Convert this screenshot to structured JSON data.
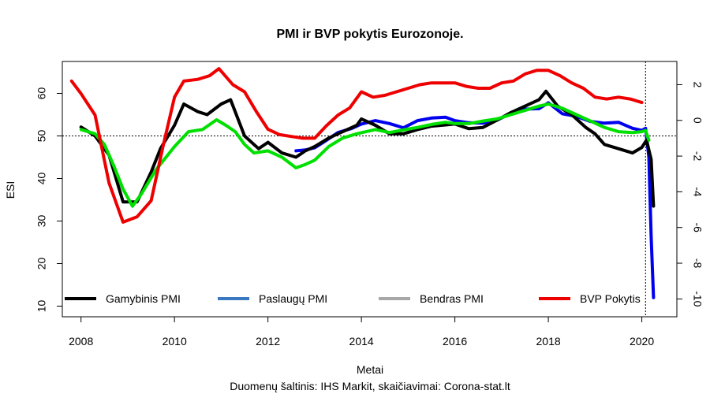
{
  "chart_data": {
    "type": "line",
    "title": "PMI ir BVP pokytis Eurozonoje.",
    "xlabel": "Metai",
    "caption": "Duomenų šaltinis: IHS Markit, skaičiavimai: Corona-stat.lt",
    "ylabel_left": "ESI",
    "ylabel_right": "",
    "xlim": [
      2007.6,
      2020.75
    ],
    "ylim_left": [
      7.5,
      67.5
    ],
    "ylim_right": [
      -11.0,
      3.3
    ],
    "x_ticks": [
      2008,
      2010,
      2012,
      2014,
      2016,
      2018,
      2020
    ],
    "y_ticks_left": [
      10,
      20,
      30,
      40,
      50,
      60
    ],
    "y_ticks_right": [
      -10,
      -8,
      -6,
      -4,
      -2,
      0,
      2
    ],
    "reference_lines": {
      "horizontal_left_y": 50,
      "vertical_x": 2020.08
    },
    "legend_position": "bottom",
    "legend": [
      "Gamybinis PMI",
      "Paslaugų PMI",
      "Bendras PMI",
      "BVP Pokytis"
    ],
    "series": [
      {
        "name": "Paslaugų PMI",
        "axis": "left",
        "color": "#0000ee",
        "legend_color": "#3a78c0",
        "x": [
          2012.6,
          2012.8,
          2013.0,
          2013.2,
          2013.5,
          2013.8,
          2014.0,
          2014.3,
          2014.6,
          2014.9,
          2015.2,
          2015.5,
          2015.8,
          2016.0,
          2016.3,
          2016.6,
          2016.9,
          2017.2,
          2017.5,
          2017.8,
          2018.0,
          2018.3,
          2018.6,
          2018.9,
          2019.2,
          2019.5,
          2019.8,
          2020.0,
          2020.08,
          2020.15,
          2020.2,
          2020.25
        ],
        "values": [
          46.5,
          46.7,
          47.2,
          48.6,
          50.8,
          51.8,
          52.8,
          53.6,
          52.9,
          51.9,
          53.6,
          54.2,
          54.4,
          53.6,
          53.1,
          53.0,
          53.7,
          55.3,
          56.3,
          56.4,
          57.8,
          55.2,
          54.6,
          53.4,
          53.0,
          53.2,
          51.8,
          51.3,
          51.8,
          45.0,
          26.4,
          12.0
        ]
      },
      {
        "name": "Gamybinis PMI",
        "axis": "left",
        "color": "#000000",
        "legend_color": "#000000",
        "x": [
          2008.0,
          2008.3,
          2008.6,
          2008.9,
          2009.2,
          2009.5,
          2009.7,
          2010.0,
          2010.2,
          2010.5,
          2010.7,
          2011.0,
          2011.2,
          2011.5,
          2011.8,
          2012.0,
          2012.3,
          2012.6,
          2012.8,
          2013.0,
          2013.3,
          2013.6,
          2013.9,
          2014.0,
          2014.3,
          2014.6,
          2014.9,
          2015.2,
          2015.5,
          2015.8,
          2016.0,
          2016.3,
          2016.6,
          2016.9,
          2017.2,
          2017.5,
          2017.8,
          2017.95,
          2018.2,
          2018.5,
          2018.8,
          2019.0,
          2019.2,
          2019.5,
          2019.8,
          2020.0,
          2020.1,
          2020.2,
          2020.25
        ],
        "values": [
          52.1,
          50.0,
          45.5,
          34.5,
          34.5,
          41.5,
          47.0,
          52.5,
          57.5,
          55.7,
          55.0,
          57.5,
          58.5,
          50.0,
          47.0,
          48.5,
          46.0,
          45.0,
          46.5,
          47.5,
          49.5,
          51.0,
          52.5,
          54.0,
          52.5,
          50.5,
          50.5,
          51.5,
          52.3,
          52.6,
          52.8,
          51.7,
          52.0,
          53.7,
          55.5,
          57.0,
          58.5,
          60.5,
          57.0,
          55.0,
          52.0,
          50.5,
          48.0,
          47.0,
          46.0,
          47.3,
          49.0,
          44.5,
          33.5
        ]
      },
      {
        "name": "Bendras PMI",
        "axis": "left",
        "color": "#00e000",
        "legend_color": "#a8a8a8",
        "x": [
          2008.0,
          2008.3,
          2008.5,
          2008.7,
          2008.9,
          2009.1,
          2009.3,
          2009.6,
          2010.0,
          2010.3,
          2010.6,
          2010.9,
          2011.1,
          2011.3,
          2011.5,
          2011.7,
          2012.0,
          2012.3,
          2012.6,
          2012.8,
          2013.0,
          2013.3,
          2013.6,
          2013.9,
          2014.1,
          2014.3,
          2014.6,
          2014.9,
          2015.2,
          2015.5,
          2015.8,
          2016.0,
          2016.3,
          2016.6,
          2016.9,
          2017.2,
          2017.5,
          2017.8,
          2018.0,
          2018.3,
          2018.6,
          2018.9,
          2019.2,
          2019.5,
          2019.8,
          2020.0,
          2020.08,
          2020.15
        ],
        "values": [
          51.5,
          50.5,
          48.0,
          43.0,
          37.5,
          33.5,
          36.5,
          42.0,
          47.5,
          51.0,
          51.5,
          53.8,
          52.5,
          51.0,
          48.0,
          46.0,
          46.5,
          45.0,
          42.5,
          43.3,
          44.3,
          47.5,
          49.5,
          50.5,
          51.0,
          51.5,
          50.8,
          51.4,
          52.0,
          52.7,
          53.2,
          52.9,
          52.9,
          53.5,
          54.0,
          55.0,
          56.0,
          57.0,
          57.5,
          56.5,
          55.0,
          53.5,
          52.0,
          51.0,
          50.8,
          51.0,
          51.3,
          49.0
        ]
      },
      {
        "name": "BVP Pokytis",
        "axis": "right",
        "color": "#ee0000",
        "legend_color": "#ee0000",
        "x": [
          2007.8,
          2008.0,
          2008.3,
          2008.6,
          2008.9,
          2009.2,
          2009.5,
          2009.75,
          2010.0,
          2010.2,
          2010.5,
          2010.75,
          2010.95,
          2011.25,
          2011.5,
          2011.75,
          2012.0,
          2012.25,
          2012.5,
          2012.75,
          2013.0,
          2013.25,
          2013.5,
          2013.75,
          2014.0,
          2014.25,
          2014.5,
          2014.75,
          2015.0,
          2015.25,
          2015.5,
          2015.75,
          2016.0,
          2016.25,
          2016.5,
          2016.75,
          2017.0,
          2017.25,
          2017.5,
          2017.75,
          2018.0,
          2018.25,
          2018.5,
          2018.75,
          2019.0,
          2019.25,
          2019.5,
          2019.75,
          2020.0
        ],
        "values": [
          2.2,
          1.5,
          0.3,
          -3.5,
          -5.7,
          -5.4,
          -4.5,
          -1.5,
          1.3,
          2.2,
          2.3,
          2.5,
          2.9,
          2.0,
          1.6,
          0.5,
          -0.5,
          -0.8,
          -0.9,
          -1.0,
          -1.0,
          -0.3,
          0.3,
          0.7,
          1.6,
          1.3,
          1.4,
          1.6,
          1.8,
          2.0,
          2.1,
          2.1,
          2.1,
          1.9,
          1.8,
          1.8,
          2.1,
          2.2,
          2.6,
          2.8,
          2.8,
          2.5,
          2.1,
          1.8,
          1.3,
          1.2,
          1.3,
          1.2,
          1.0
        ]
      }
    ]
  }
}
